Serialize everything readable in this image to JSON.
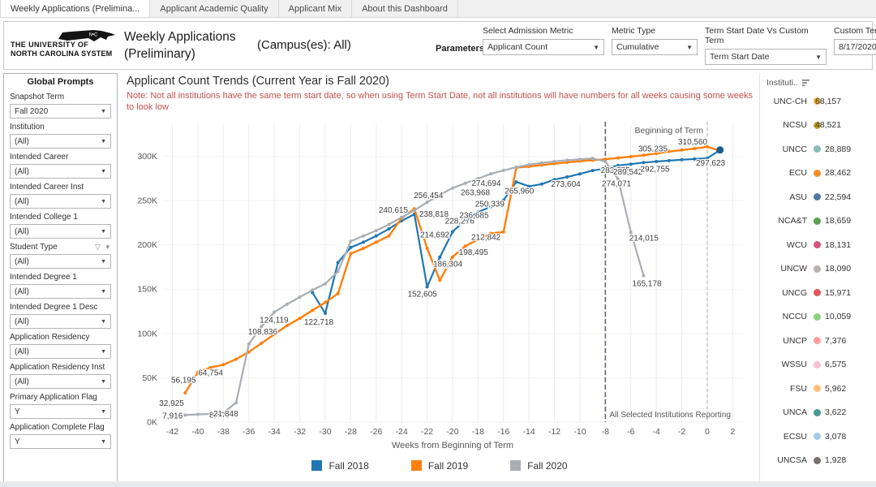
{
  "tabs": [
    {
      "label": "Weekly Applications (Prelimina...",
      "active": true
    },
    {
      "label": "Applicant Academic Quality",
      "active": false
    },
    {
      "label": "Applicant Mix",
      "active": false
    },
    {
      "label": "About this Dashboard",
      "active": false
    }
  ],
  "header": {
    "logo_line1": "THE UNIVERSITY OF",
    "logo_line2": "NORTH CAROLINA SYSTEM",
    "logo_badge": "N•C",
    "title": "Weekly Applications (Preliminary)",
    "campus": "(Campus(es): All)",
    "params_label": "Parameters:",
    "parameters": [
      {
        "label": "Select Admission Metric",
        "value": "Applicant Count",
        "type": "select"
      },
      {
        "label": "Metric Type",
        "value": "Cumulative",
        "type": "select"
      },
      {
        "label": "Term Start Date Vs Custom Term",
        "value": "Term Start Date",
        "type": "select"
      },
      {
        "label": "Custom Term Start",
        "value": "8/17/2020",
        "type": "input"
      }
    ]
  },
  "global_prompts": {
    "title": "Global Prompts",
    "filters": [
      {
        "label": "Snapshot Term",
        "value": "Fall 2020"
      },
      {
        "label": "Institution",
        "value": "(All)"
      },
      {
        "label": "Intended Career",
        "value": "(All)"
      },
      {
        "label": "Intended Career Inst",
        "value": "(All)"
      },
      {
        "label": "Intended College 1",
        "value": "(All)"
      },
      {
        "label": "Student Type",
        "value": "(All)",
        "funnel": true
      },
      {
        "label": "Intended Degree 1",
        "value": "(All)"
      },
      {
        "label": "Intended Degree 1 Desc",
        "value": "(All)"
      },
      {
        "label": "Application Residency",
        "value": "(All)"
      },
      {
        "label": "Application Residency Inst",
        "value": "(All)"
      },
      {
        "label": "Primary Application Flag",
        "value": "Y"
      },
      {
        "label": "Application Complete Flag",
        "value": "Y"
      }
    ]
  },
  "chart_data": {
    "type": "line",
    "title": "Applicant Count Trends (Current Year is Fall  2020)",
    "note": "Note: Not all institutions have the same term start date, so when using Term Start Date, not all institutions will have numbers for all weeks causing some weeks to look low",
    "xlabel": "Weeks from Beginning of Term",
    "x_ticks": [
      -42,
      -40,
      -38,
      -36,
      -34,
      -32,
      -30,
      -28,
      -26,
      -24,
      -22,
      -20,
      -18,
      -16,
      -14,
      -12,
      -10,
      -8,
      -6,
      -4,
      -2,
      0,
      2
    ],
    "y_ticks": [
      "0K",
      "50K",
      "100K",
      "150K",
      "200K",
      "250K",
      "300K"
    ],
    "xlim": [
      -43,
      3
    ],
    "ylim": [
      0,
      320000
    ],
    "annotations": {
      "beginning_of_term": {
        "week": 0,
        "label": "Beginning of Term"
      },
      "all_reporting": {
        "week": -8,
        "label": "All Selected Institutions Reporting"
      }
    },
    "series": [
      {
        "name": "Fall 2018",
        "color": "#1F77B4",
        "width": 2.2,
        "points": [
          [
            -31,
            146000
          ],
          [
            -30,
            122718
          ],
          [
            -29,
            180000
          ],
          [
            -28,
            197000
          ],
          [
            -27,
            203000
          ],
          [
            -26,
            210000
          ],
          [
            -25,
            218000
          ],
          [
            -24,
            227000
          ],
          [
            -23,
            234500
          ],
          [
            -22,
            152605
          ],
          [
            -21,
            186000
          ],
          [
            -20,
            214692
          ],
          [
            -19,
            228276
          ],
          [
            -18,
            236685
          ],
          [
            -17,
            243000
          ],
          [
            -16,
            250339
          ],
          [
            -15,
            271000
          ],
          [
            -14,
            265960
          ],
          [
            -13,
            268500
          ],
          [
            -12,
            273604
          ],
          [
            -11,
            276500
          ],
          [
            -10,
            280000
          ],
          [
            -9,
            283775
          ],
          [
            -8,
            286000
          ],
          [
            -7,
            289542
          ],
          [
            -6,
            291000
          ],
          [
            -5,
            292755
          ],
          [
            -4,
            294000
          ],
          [
            -3,
            295000
          ],
          [
            -2,
            296000
          ],
          [
            -1,
            296800
          ],
          [
            0,
            297623
          ],
          [
            1,
            307000
          ]
        ],
        "labels": [
          {
            "w": -30,
            "t": "122,718",
            "dx": -26,
            "dy": 14
          },
          {
            "w": -22,
            "t": "152,605",
            "dx": -24,
            "dy": 12
          },
          {
            "w": -20,
            "t": "214,692",
            "dx": -40,
            "dy": 7
          },
          {
            "w": -19,
            "t": "228,276",
            "dx": -25,
            "dy": 5
          },
          {
            "w": -18,
            "t": "236,685",
            "dx": -23,
            "dy": 7
          },
          {
            "w": -16,
            "t": "250,339",
            "dx": -35,
            "dy": 8
          },
          {
            "w": -14,
            "t": "265,960",
            "dx": -30,
            "dy": 9
          },
          {
            "w": -12,
            "t": "273,604",
            "dx": -4,
            "dy": 9
          },
          {
            "w": -9,
            "t": "283,775",
            "dx": 10,
            "dy": 3
          },
          {
            "w": -7,
            "t": "289,542",
            "dx": -6,
            "dy": 11
          },
          {
            "w": -5,
            "t": "292,755",
            "dx": -4,
            "dy": 11
          },
          {
            "w": 0,
            "t": "297,623",
            "dx": -14,
            "dy": 9
          }
        ]
      },
      {
        "name": "Fall 2019",
        "color": "#FF7F0E",
        "width": 2.4,
        "points": [
          [
            -41,
            32925
          ],
          [
            -40,
            56195
          ],
          [
            -39,
            61500
          ],
          [
            -38,
            64754
          ],
          [
            -37,
            71000
          ],
          [
            -36,
            79000
          ],
          [
            -35,
            89000
          ],
          [
            -34,
            99000
          ],
          [
            -33,
            108836
          ],
          [
            -32,
            117000
          ],
          [
            -31,
            126000
          ],
          [
            -30,
            135000
          ],
          [
            -29,
            145000
          ],
          [
            -28,
            190000
          ],
          [
            -27,
            196000
          ],
          [
            -26,
            203000
          ],
          [
            -25,
            210000
          ],
          [
            -24,
            230000
          ],
          [
            -23,
            240615
          ],
          [
            -22,
            196000
          ],
          [
            -21,
            160000
          ],
          [
            -20,
            186304
          ],
          [
            -19,
            198495
          ],
          [
            -18,
            206000
          ],
          [
            -17,
            212842
          ],
          [
            -16,
            214500
          ],
          [
            -15,
            287000
          ],
          [
            -14,
            288500
          ],
          [
            -13,
            290000
          ],
          [
            -12,
            291500
          ],
          [
            -11,
            293000
          ],
          [
            -10,
            294500
          ],
          [
            -9,
            295500
          ],
          [
            -8,
            296500
          ],
          [
            -7,
            298000
          ],
          [
            -6,
            299500
          ],
          [
            -5,
            301000
          ],
          [
            -4,
            303000
          ],
          [
            -3,
            305235
          ],
          [
            -2,
            307000
          ],
          [
            -1,
            308500
          ],
          [
            0,
            310560
          ],
          [
            1,
            306000
          ]
        ],
        "labels": [
          {
            "w": -41,
            "t": "32,925",
            "dx": -32,
            "dy": 16
          },
          {
            "w": -40,
            "t": "56,195",
            "dx": -33,
            "dy": 13
          },
          {
            "w": -38,
            "t": "64,754",
            "dx": -31,
            "dy": 13
          },
          {
            "w": -33,
            "t": "108,836",
            "dx": -48,
            "dy": 11
          },
          {
            "w": -23,
            "t": "240,615",
            "dx": -44,
            "dy": 5
          },
          {
            "w": -20,
            "t": "186,304",
            "dx": -24,
            "dy": 12
          },
          {
            "w": -19,
            "t": "198,495",
            "dx": -8,
            "dy": 11
          },
          {
            "w": -17,
            "t": "212,842",
            "dx": -24,
            "dy": 8
          },
          {
            "w": -3,
            "t": "305,235",
            "dx": -38,
            "dy": 0
          },
          {
            "w": 0,
            "t": "310,560",
            "dx": -36,
            "dy": -3
          }
        ]
      },
      {
        "name": "Fall 2020",
        "color": "#A9AEB4",
        "width": 2.2,
        "points": [
          [
            -41,
            7916
          ],
          [
            -40,
            8693
          ],
          [
            -39,
            9200
          ],
          [
            -38,
            10500
          ],
          [
            -37,
            21848
          ],
          [
            -36,
            88000
          ],
          [
            -35,
            108000
          ],
          [
            -34,
            124119
          ],
          [
            -33,
            133000
          ],
          [
            -32,
            141000
          ],
          [
            -31,
            149000
          ],
          [
            -30,
            156000
          ],
          [
            -29,
            170000
          ],
          [
            -28,
            204000
          ],
          [
            -27,
            210000
          ],
          [
            -26,
            216000
          ],
          [
            -25,
            223000
          ],
          [
            -24,
            231000
          ],
          [
            -23,
            238818
          ],
          [
            -22,
            248000
          ],
          [
            -21,
            256454
          ],
          [
            -20,
            263968
          ],
          [
            -19,
            269500
          ],
          [
            -18,
            274694
          ],
          [
            -17,
            280000
          ],
          [
            -16,
            284000
          ],
          [
            -15,
            287500
          ],
          [
            -14,
            290500
          ],
          [
            -13,
            292500
          ],
          [
            -12,
            294000
          ],
          [
            -11,
            295500
          ],
          [
            -10,
            296500
          ],
          [
            -9,
            297500
          ],
          [
            -8,
            294000
          ],
          [
            -7,
            274071
          ],
          [
            -6,
            214015
          ],
          [
            -5,
            165178
          ]
        ],
        "labels": [
          {
            "w": -41,
            "t": "7,916",
            "dx": -28,
            "dy": 4
          },
          {
            "w": -40,
            "t": "8,693",
            "dx": 14,
            "dy": 4
          },
          {
            "w": -37,
            "t": "21,848",
            "dx": -28,
            "dy": 17
          },
          {
            "w": -34,
            "t": "124,119",
            "dx": -18,
            "dy": 13
          },
          {
            "w": -23,
            "t": "238,818",
            "dx": 6,
            "dy": 8
          },
          {
            "w": -21,
            "t": "256,454",
            "dx": -32,
            "dy": 4
          },
          {
            "w": -20,
            "t": "263,968",
            "dx": 10,
            "dy": 9
          },
          {
            "w": -18,
            "t": "274,694",
            "dx": -8,
            "dy": 9
          },
          {
            "w": -7,
            "t": "274,071",
            "dx": -20,
            "dy": 9
          },
          {
            "w": -6,
            "t": "214,015",
            "dx": -2,
            "dy": 10
          },
          {
            "w": -5,
            "t": "165,178",
            "dx": -14,
            "dy": 13
          }
        ]
      }
    ]
  },
  "institutions": {
    "header": "Instituti..",
    "rows": [
      {
        "name": "UNC-CH",
        "value": "68,157",
        "color": "#EDB13B",
        "overlap": true
      },
      {
        "name": "NCSU",
        "value": "48,521",
        "color": "#C9A227",
        "overlap": true
      },
      {
        "name": "UNCC",
        "value": "28,889",
        "color": "#86BCB6",
        "overlap": false
      },
      {
        "name": "ECU",
        "value": "28,462",
        "color": "#F28E2B",
        "overlap": false
      },
      {
        "name": "ASU",
        "value": "22,594",
        "color": "#4E79A7",
        "overlap": false
      },
      {
        "name": "NCA&T",
        "value": "18,659",
        "color": "#59A14F",
        "overlap": false
      },
      {
        "name": "WCU",
        "value": "18,131",
        "color": "#D4537E",
        "overlap": false
      },
      {
        "name": "UNCW",
        "value": "18,090",
        "color": "#BAB0AC",
        "overlap": false
      },
      {
        "name": "UNCG",
        "value": "15,971",
        "color": "#E15759",
        "overlap": false
      },
      {
        "name": "NCCU",
        "value": "10,059",
        "color": "#8CD17D",
        "overlap": false
      },
      {
        "name": "UNCP",
        "value": "7,376",
        "color": "#FF9D9A",
        "overlap": false
      },
      {
        "name": "WSSU",
        "value": "6,575",
        "color": "#FABFD2",
        "overlap": false
      },
      {
        "name": "FSU",
        "value": "5,962",
        "color": "#FFBE7D",
        "overlap": false
      },
      {
        "name": "UNCA",
        "value": "3,622",
        "color": "#499894",
        "overlap": false
      },
      {
        "name": "ECSU",
        "value": "3,078",
        "color": "#A0CBE8",
        "overlap": false
      },
      {
        "name": "UNCSA",
        "value": "1,928",
        "color": "#79706E",
        "overlap": false
      }
    ]
  }
}
